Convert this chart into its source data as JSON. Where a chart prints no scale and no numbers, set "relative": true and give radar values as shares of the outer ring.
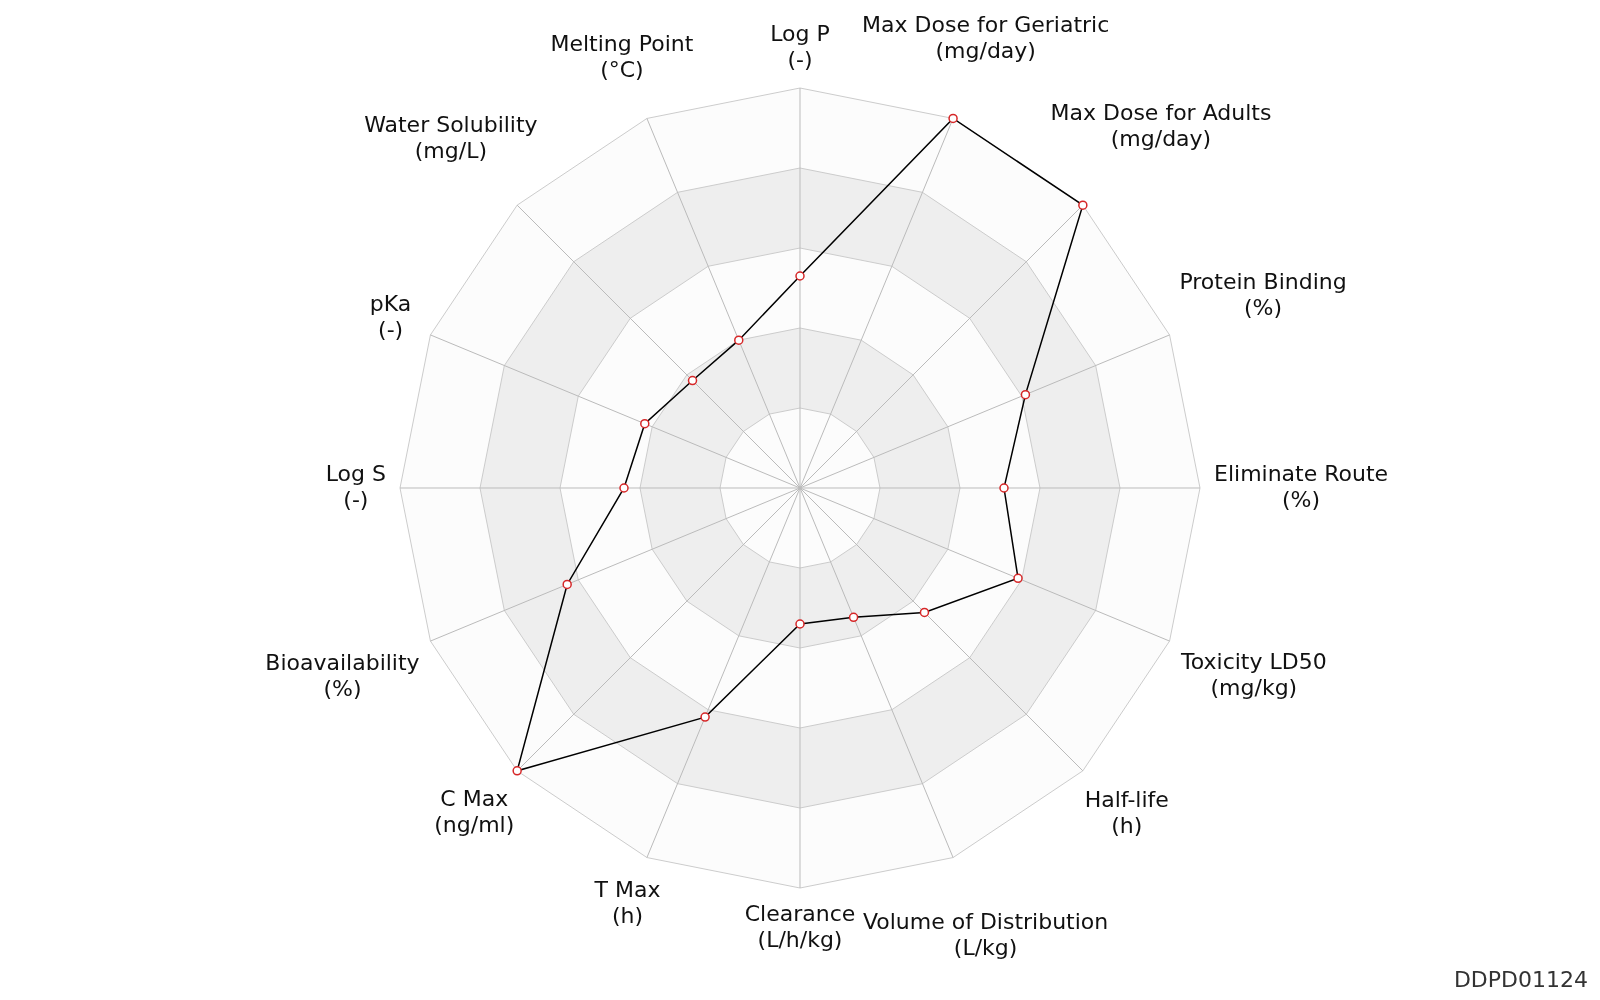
{
  "chart_data": {
    "type": "radar",
    "relative": true,
    "categories": [
      "Log P\n(-)",
      "Max Dose for Geriatric\n(mg/day)",
      "Max Dose for Adults\n(mg/day)",
      "Protein Binding\n(%)",
      "Eliminate Route\n(%)",
      "Toxicity LD50\n(mg/kg)",
      "Half-life\n(h)",
      "Volume of Distribution\n(L/kg)",
      "Clearance\n(L/h/kg)",
      "T Max\n(h)",
      "C Max\n(ng/ml)",
      "Bioavailability\n(%)",
      "Log S\n(-)",
      "pKa\n(-)",
      "Water Solubility\n(mg/L)",
      "Melting Point\n(°C)"
    ],
    "series": [
      {
        "color": "#000000",
        "values": [
          0.53,
          1.0,
          1.0,
          0.61,
          0.51,
          0.59,
          0.44,
          0.35,
          0.34,
          0.62,
          1.0,
          0.63,
          0.44,
          0.42,
          0.38,
          0.4
        ]
      }
    ],
    "marker": "circle",
    "legend": false,
    "annotations": [
      "DDPD01124"
    ]
  }
}
